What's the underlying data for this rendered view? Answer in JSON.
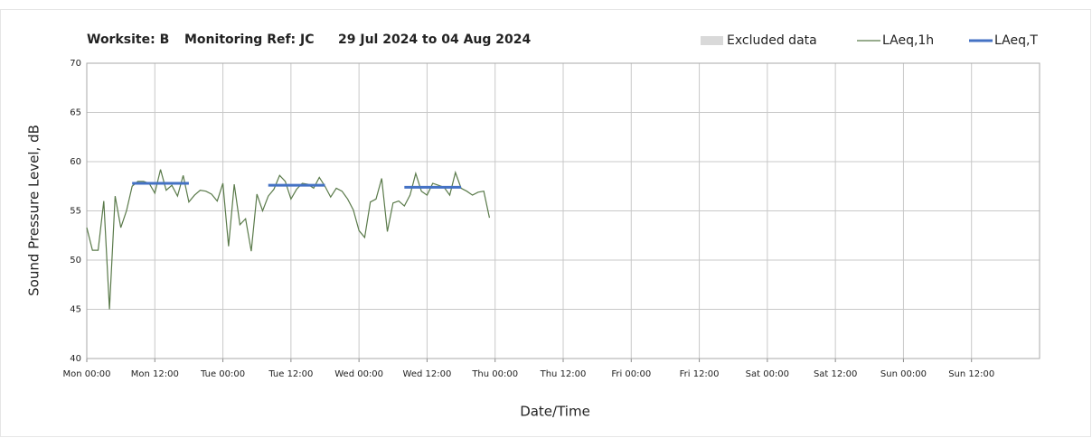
{
  "chart_data": {
    "type": "line",
    "title_parts": [
      "Worksite: B",
      "Monitoring Ref: JC",
      "29 Jul 2024 to 04 Aug 2024"
    ],
    "ylabel": "Sound Pressure Level, dB",
    "xlabel": "Date/Time",
    "xlim": [
      0,
      168
    ],
    "xticks": [
      {
        "value": 0,
        "label": "Mon 00:00"
      },
      {
        "value": 12,
        "label": "Mon 12:00"
      },
      {
        "value": 24,
        "label": "Tue 00:00"
      },
      {
        "value": 36,
        "label": "Tue 12:00"
      },
      {
        "value": 48,
        "label": "Wed 00:00"
      },
      {
        "value": 60,
        "label": "Wed 12:00"
      },
      {
        "value": 72,
        "label": "Thu 00:00"
      },
      {
        "value": 84,
        "label": "Thu 12:00"
      },
      {
        "value": 96,
        "label": "Fri 00:00"
      },
      {
        "value": 108,
        "label": "Fri 12:00"
      },
      {
        "value": 120,
        "label": "Sat 00:00"
      },
      {
        "value": 132,
        "label": "Sat 12:00"
      },
      {
        "value": 144,
        "label": "Sun 00:00"
      },
      {
        "value": 156,
        "label": "Sun 12:00"
      }
    ],
    "ylim": [
      40,
      70
    ],
    "yticks": [
      40,
      45,
      50,
      55,
      60,
      65,
      70
    ],
    "grid": true,
    "legend": "top-right",
    "series": [
      {
        "name": "Excluded data",
        "color": "#d9d9d9",
        "x": [],
        "values": []
      },
      {
        "name": "LAeq,1h",
        "color": "#5a7a4a",
        "x": [
          0,
          1,
          2,
          3,
          4,
          5,
          6,
          7,
          8,
          9,
          10,
          11,
          12,
          13,
          14,
          15,
          16,
          17,
          18,
          19,
          20,
          21,
          22,
          23,
          24,
          25,
          26,
          27,
          28,
          29,
          30,
          31,
          32,
          33,
          34,
          35,
          36,
          37,
          38,
          39,
          40,
          41,
          42,
          43,
          44,
          45,
          46,
          47,
          48,
          49,
          50,
          51,
          52,
          53,
          54,
          55,
          56,
          57,
          58,
          59,
          60,
          61,
          62,
          63,
          64,
          65,
          66,
          67,
          68,
          69,
          70,
          71
        ],
        "values": [
          53.3,
          51,
          51,
          56,
          45,
          56.5,
          53.3,
          55,
          57.5,
          58,
          58,
          57.8,
          56.8,
          59.2,
          57.1,
          57.6,
          56.5,
          58.6,
          55.9,
          56.6,
          57.1,
          57,
          56.7,
          56,
          57.8,
          51.4,
          57.7,
          53.6,
          54.2,
          50.9,
          56.7,
          55,
          56.5,
          57.2,
          58.6,
          58,
          56.2,
          57.2,
          57.8,
          57.7,
          57.3,
          58.4,
          57.5,
          56.4,
          57.3,
          57,
          56.2,
          55.1,
          53,
          52.3,
          55.9,
          56.2,
          58.3,
          52.9,
          55.8,
          56,
          55.5,
          56.6,
          58.8,
          57,
          56.6,
          57.8,
          57.6,
          57.4,
          56.6,
          58.9,
          57.3,
          57,
          56.6,
          56.9,
          57,
          54.3
        ]
      },
      {
        "name": "LAeq,T",
        "color": "#4472c4",
        "x": [
          8,
          18,
          32,
          42,
          56,
          66
        ],
        "values": [
          57.8,
          57.8,
          57.6,
          57.6,
          57.4,
          57.4
        ]
      }
    ]
  }
}
